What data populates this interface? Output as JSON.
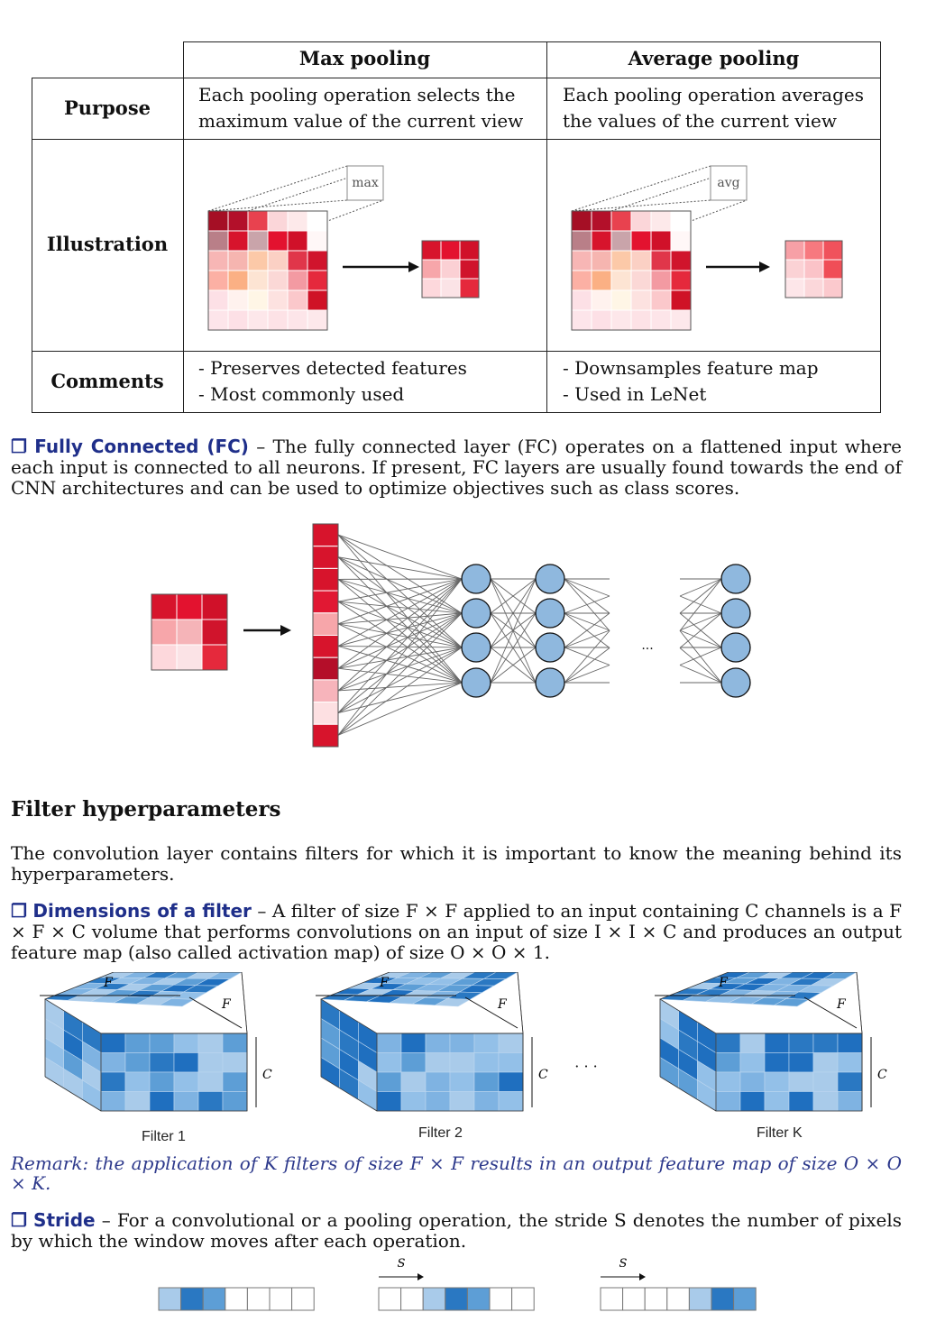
{
  "table": {
    "headers": [
      "Max pooling",
      "Average pooling"
    ],
    "rows": [
      {
        "label": "Purpose",
        "cells": [
          "Each pooling operation selects the maximum value of the current view",
          "Each pooling operation averages the values of the current view"
        ]
      },
      {
        "label": "Illustration",
        "cells": [
          "max",
          "avg"
        ]
      },
      {
        "label": "Comments",
        "cells": [
          [
            "- Preserves detected features",
            "- Most commonly used"
          ],
          [
            "- Downsamples feature map",
            "- Used in LeNet"
          ]
        ]
      }
    ]
  },
  "fc": {
    "marker": "❐",
    "title": "Fully Connected (FC)",
    "text": "– The fully connected layer (FC) operates on a flattened input where each input is connected to all neurons. If present, FC layers are usually found towards the end of CNN architectures and can be used to optimize objectives such as class scores.",
    "ellipsis": "..."
  },
  "filter_section": {
    "heading": "Filter hyperparameters",
    "intro": "The convolution layer contains filters for which it is important to know the meaning behind its hyperparameters."
  },
  "dimensions": {
    "marker": "❐",
    "title": "Dimensions of a filter",
    "text": "– A filter of size F × F applied to an input containing C channels is a F × F × C volume that performs convolutions on an input of size I × I × C and produces an output feature map (also called activation map) of size O × O × 1.",
    "labels": {
      "F": "F",
      "C": "C",
      "dots": "· · ·"
    },
    "filters": [
      "Filter 1",
      "Filter 2",
      "Filter K"
    ]
  },
  "remark": "Remark: the application of K filters of size F × F results in an output feature map of size O × O × K.",
  "stride": {
    "marker": "❐",
    "title": "Stride",
    "text": "– For a convolutional or a pooling operation, the stride S denotes the number of pixels by which the window moves after each operation.",
    "label": "S"
  },
  "colors": {
    "dark_red": "#a50f25",
    "red": "#d7142c",
    "light_red": "#f4a3ac",
    "pale_red": "#fde0e2",
    "blue_node": "#8fb8de",
    "blue_dark": "#2a78c2",
    "blue_mid": "#5d9ed6",
    "blue_light": "#a9cbea",
    "link_blue": "#1f2f8a"
  }
}
